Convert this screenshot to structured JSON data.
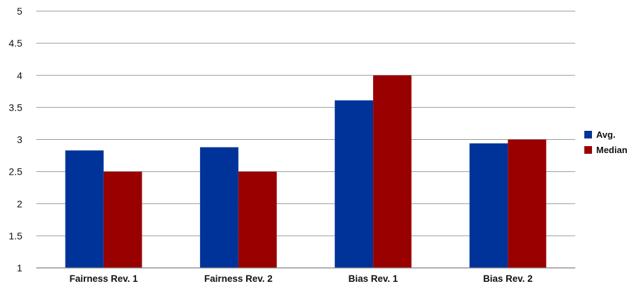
{
  "chart_data": {
    "type": "bar",
    "title": "",
    "xlabel": "",
    "ylabel": "",
    "categories": [
      "Fairness Rev. 1",
      "Fairness Rev. 2",
      "Bias Rev. 1",
      "Bias Rev. 2"
    ],
    "series": [
      {
        "name": "Avg.",
        "values": [
          2.83,
          2.88,
          3.61,
          2.94
        ],
        "color": "#003399"
      },
      {
        "name": "Median",
        "values": [
          2.5,
          2.5,
          4.0,
          3.0
        ],
        "color": "#990000"
      }
    ],
    "ylim": [
      1,
      5
    ],
    "yticks": [
      1,
      1.5,
      2,
      2.5,
      3,
      3.5,
      4,
      4.5,
      5
    ],
    "ytick_labels": [
      "1",
      "1.5",
      "2",
      "2.5",
      "3",
      "3.5",
      "4",
      "4.5",
      "5"
    ],
    "grid": true,
    "legend_position": "right"
  }
}
